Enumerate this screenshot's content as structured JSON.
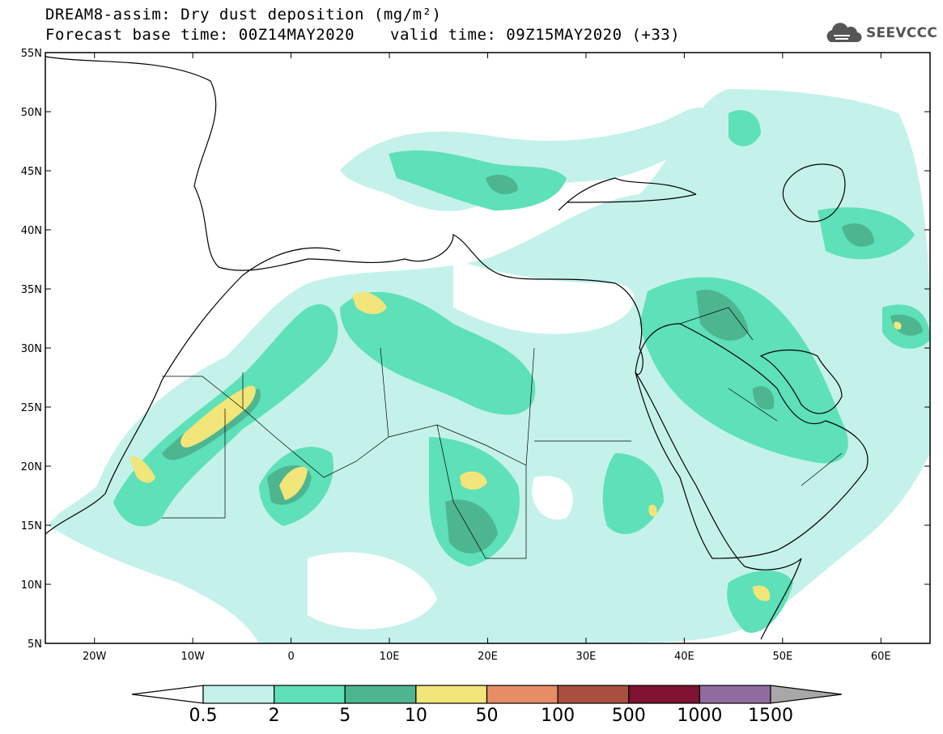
{
  "header": {
    "title": "DREAM8-assim: Dry dust deposition (mg/m²)",
    "base_time": "Forecast base time: 00Z14MAY2020",
    "valid_time": "valid time: 09Z15MAY2020 (+33)"
  },
  "logo": {
    "text": "SEEVCCC",
    "icon": "cloud-icon"
  },
  "map": {
    "projection": "lat-lon",
    "lon_range": [
      -25,
      65
    ],
    "lat_range": [
      5,
      55
    ],
    "lat_labels": [
      "55N",
      "50N",
      "45N",
      "40N",
      "35N",
      "30N",
      "25N",
      "20N",
      "15N",
      "10N",
      "5N"
    ],
    "lon_labels": [
      "20W",
      "10W",
      "0",
      "10E",
      "20E",
      "30E",
      "40E",
      "50E",
      "60E"
    ]
  },
  "colorbar": {
    "labels": [
      "0.5",
      "2",
      "5",
      "10",
      "50",
      "100",
      "500",
      "1000",
      "1500"
    ],
    "colors": [
      "#ffffff",
      "#c4f2ea",
      "#5ee0b8",
      "#4eb591",
      "#f2e57a",
      "#e68d66",
      "#a84f40",
      "#7e1230",
      "#8f6b9f",
      "#a8a8a8"
    ]
  }
}
